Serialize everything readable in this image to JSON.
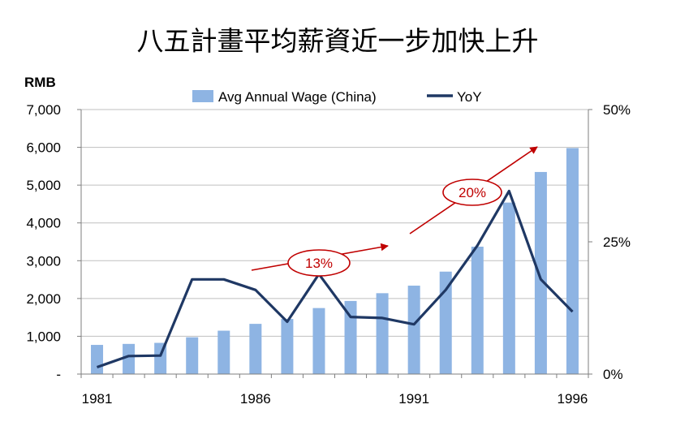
{
  "chart_data": {
    "type": "bar",
    "title": "八五計畫平均薪資近一步加快上升",
    "ylabel": "RMB",
    "ylim": [
      0,
      7000
    ],
    "y2lim": [
      0,
      50
    ],
    "yticks": [
      "-",
      "1,000",
      "2,000",
      "3,000",
      "4,000",
      "5,000",
      "6,000",
      "7,000"
    ],
    "y2ticks": [
      "0%",
      "25%",
      "50%"
    ],
    "xtick_labels": [
      "1981",
      "1986",
      "1991",
      "1996"
    ],
    "x": [
      1981,
      1982,
      1983,
      1984,
      1985,
      1986,
      1987,
      1988,
      1989,
      1990,
      1991,
      1992,
      1993,
      1994,
      1995,
      1996
    ],
    "grid": true,
    "legend_position": "top-center",
    "series": [
      {
        "name": "Avg Annual Wage (China)",
        "type": "bar",
        "axis": "left",
        "color": "#8eb4e3",
        "values": [
          772,
          798,
          826,
          974,
          1148,
          1329,
          1459,
          1747,
          1935,
          2140,
          2340,
          2711,
          3371,
          4538,
          5348,
          5980
        ]
      },
      {
        "name": "YoY",
        "type": "line",
        "axis": "right",
        "color": "#1f3864",
        "values": [
          1.3,
          3.4,
          3.5,
          17.9,
          17.9,
          15.9,
          9.9,
          18.9,
          10.8,
          10.6,
          9.4,
          15.9,
          24.3,
          34.6,
          17.9,
          11.8
        ]
      }
    ],
    "annotations": [
      {
        "text": "13%",
        "color": "#c00000"
      },
      {
        "text": "20%",
        "color": "#c00000"
      }
    ]
  }
}
